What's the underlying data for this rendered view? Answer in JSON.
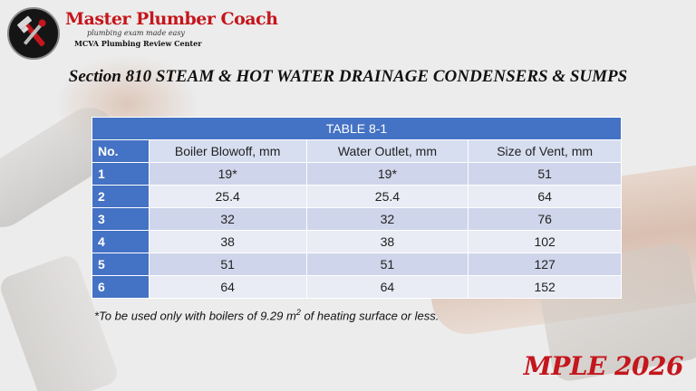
{
  "logo": {
    "title": "Master Plumber Coach",
    "tagline": "plumbing exam made easy",
    "subtitle": "MCVA Plumbing Review Center"
  },
  "section_title": "Section 810 STEAM & HOT WATER DRAINAGE CONDENSERS & SUMPS",
  "table": {
    "caption": "TABLE 8-1",
    "headers": [
      "No.",
      "Boiler Blowoff, mm",
      "Water Outlet, mm",
      "Size of Vent, mm"
    ],
    "rows": [
      [
        "1",
        "19*",
        "19*",
        "51"
      ],
      [
        "2",
        "25.4",
        "25.4",
        "64"
      ],
      [
        "3",
        "32",
        "32",
        "76"
      ],
      [
        "4",
        "38",
        "38",
        "102"
      ],
      [
        "5",
        "51",
        "51",
        "127"
      ],
      [
        "6",
        "64",
        "64",
        "152"
      ]
    ]
  },
  "footnote": {
    "before": "*To be used only with boilers of 9.29 m",
    "sup": "2",
    "after": " of heating surface or less."
  },
  "badge": "MPLE 2026",
  "colors": {
    "accent_red": "#c4161c",
    "table_header_blue": "#4472c4"
  }
}
